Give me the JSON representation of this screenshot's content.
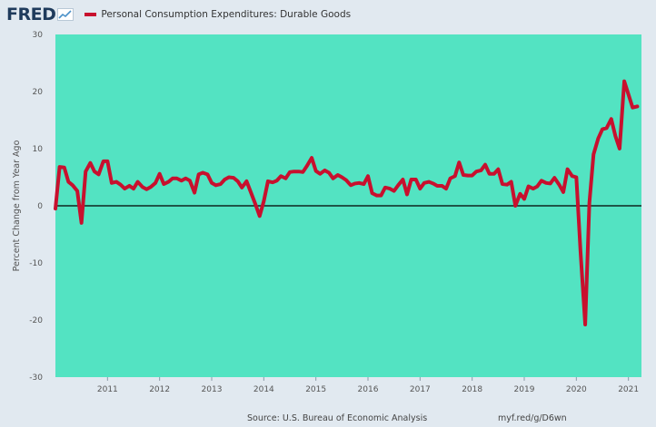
{
  "header": {
    "logo": "FRED",
    "legend_label": "Personal Consumption Expenditures: Durable Goods",
    "series_color": "#c8102e"
  },
  "footer": {
    "source": "Source: U.S. Bureau of Economic Analysis",
    "link": "myf.red/g/D6wn"
  },
  "chart_data": {
    "type": "line",
    "ylabel": "Percent Change from Year Ago",
    "ylim": [
      -30,
      30
    ],
    "yticks": [
      -30,
      -20,
      -10,
      0,
      10,
      20,
      30
    ],
    "xlim": [
      2010.0,
      2021.25
    ],
    "xticks": [
      2011,
      2012,
      2013,
      2014,
      2015,
      2016,
      2017,
      2018,
      2019,
      2020,
      2021
    ],
    "plot_background": "#53e3c2",
    "zero_line": true,
    "series": [
      {
        "color": "#c8102e",
        "x": [
          2010.0,
          2010.08,
          2010.17,
          2010.25,
          2010.33,
          2010.42,
          2010.5,
          2010.58,
          2010.67,
          2010.75,
          2010.83,
          2010.92,
          2011.0,
          2011.08,
          2011.17,
          2011.25,
          2011.33,
          2011.42,
          2011.5,
          2011.58,
          2011.67,
          2011.75,
          2011.83,
          2011.92,
          2012.0,
          2012.08,
          2012.17,
          2012.25,
          2012.33,
          2012.42,
          2012.5,
          2012.58,
          2012.67,
          2012.75,
          2012.83,
          2012.92,
          2013.0,
          2013.08,
          2013.17,
          2013.25,
          2013.33,
          2013.42,
          2013.5,
          2013.58,
          2013.67,
          2013.75,
          2013.83,
          2013.92,
          2014.0,
          2014.08,
          2014.17,
          2014.25,
          2014.33,
          2014.42,
          2014.5,
          2014.58,
          2014.67,
          2014.75,
          2014.83,
          2014.92,
          2015.0,
          2015.08,
          2015.17,
          2015.25,
          2015.33,
          2015.42,
          2015.5,
          2015.58,
          2015.67,
          2015.75,
          2015.83,
          2015.92,
          2016.0,
          2016.08,
          2016.17,
          2016.25,
          2016.33,
          2016.42,
          2016.5,
          2016.58,
          2016.67,
          2016.75,
          2016.83,
          2016.92,
          2017.0,
          2017.08,
          2017.17,
          2017.25,
          2017.33,
          2017.42,
          2017.5,
          2017.58,
          2017.67,
          2017.75,
          2017.83,
          2017.92,
          2018.0,
          2018.08,
          2018.17,
          2018.25,
          2018.33,
          2018.42,
          2018.5,
          2018.58,
          2018.67,
          2018.75,
          2018.83,
          2018.92,
          2019.0,
          2019.08,
          2019.17,
          2019.25,
          2019.33,
          2019.42,
          2019.5,
          2019.58,
          2019.67,
          2019.75,
          2019.83,
          2019.92,
          2020.0,
          2020.08,
          2020.17,
          2020.25,
          2020.33,
          2020.42,
          2020.5,
          2020.58,
          2020.67,
          2020.75,
          2020.83,
          2020.92,
          2021.0,
          2021.08,
          2021.17
        ],
        "y": [
          -0.5,
          6.8,
          6.7,
          4.2,
          3.6,
          2.6,
          -3.0,
          6.0,
          7.5,
          6.0,
          5.5,
          7.8,
          7.8,
          4.0,
          4.2,
          3.7,
          3.0,
          3.5,
          3.0,
          4.2,
          3.3,
          2.9,
          3.3,
          4.0,
          5.6,
          3.8,
          4.2,
          4.8,
          4.8,
          4.4,
          4.8,
          4.4,
          2.3,
          5.5,
          5.8,
          5.5,
          4.0,
          3.6,
          3.8,
          4.6,
          5.0,
          4.9,
          4.3,
          3.2,
          4.3,
          2.4,
          0.5,
          -1.8,
          0.8,
          4.3,
          4.1,
          4.4,
          5.2,
          4.8,
          5.9,
          6.0,
          6.0,
          5.9,
          7.0,
          8.4,
          6.1,
          5.6,
          6.2,
          5.8,
          4.8,
          5.4,
          5.0,
          4.5,
          3.6,
          3.9,
          4.0,
          3.8,
          5.2,
          2.2,
          1.8,
          1.8,
          3.2,
          3.0,
          2.6,
          3.6,
          4.6,
          2.0,
          4.6,
          4.6,
          3.0,
          4.0,
          4.2,
          3.9,
          3.5,
          3.5,
          3.0,
          4.8,
          5.2,
          7.6,
          5.4,
          5.3,
          5.3,
          6.0,
          6.2,
          7.2,
          5.6,
          5.6,
          6.4,
          3.8,
          3.7,
          4.2,
          0.0,
          2.1,
          1.2,
          3.4,
          3.0,
          3.4,
          4.4,
          4.0,
          3.9,
          4.9,
          3.7,
          2.4,
          6.4,
          5.2,
          5.0,
          -8.0,
          -20.8,
          0.5,
          9.0,
          11.8,
          13.4,
          13.6,
          15.2,
          12.2,
          10.0,
          21.8,
          19.5,
          17.2,
          17.4
        ]
      }
    ]
  }
}
